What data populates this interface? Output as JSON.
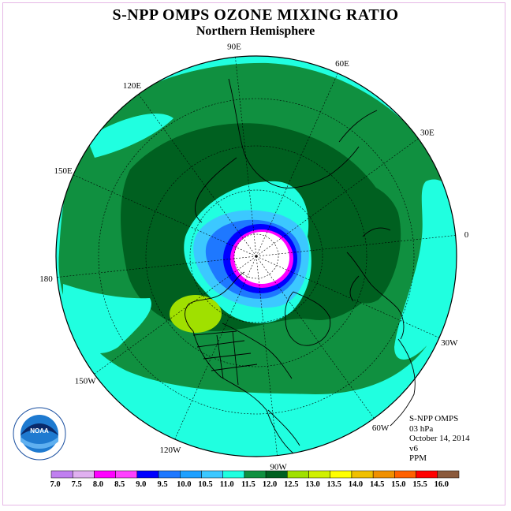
{
  "title": "S-NPP OMPS OZONE MIXING RATIO",
  "subtitle": "Northern Hemisphere",
  "longitude_labels": [
    {
      "text": "90E",
      "lon": 90
    },
    {
      "text": "60E",
      "lon": 60
    },
    {
      "text": "30E",
      "lon": 30
    },
    {
      "text": "0",
      "lon": 0
    },
    {
      "text": "30W",
      "lon": -30
    },
    {
      "text": "60W",
      "lon": -60
    },
    {
      "text": "90W",
      "lon": -90
    },
    {
      "text": "120W",
      "lon": -120
    },
    {
      "text": "150W",
      "lon": -150
    },
    {
      "text": "180",
      "lon": 180
    },
    {
      "text": "150E",
      "lon": 150
    },
    {
      "text": "120E",
      "lon": 120
    }
  ],
  "info": {
    "instrument": "S-NPP OMPS",
    "level": "03 hPa",
    "date": "October 14, 2014",
    "version": "v6",
    "units": "PPM"
  },
  "logo": {
    "text": "NOAA"
  },
  "colorbar": {
    "labels": [
      "7.0",
      "7.5",
      "8.0",
      "8.5",
      "9.0",
      "9.5",
      "10.0",
      "10.5",
      "11.0",
      "11.5",
      "12.0",
      "12.5",
      "13.0",
      "13.5",
      "14.0",
      "14.5",
      "15.0",
      "15.5",
      "16.0"
    ],
    "colors": [
      "#c080f0",
      "#e0b0f0",
      "#ff00ff",
      "#ff40ff",
      "#0000ff",
      "#1e78ff",
      "#1ea0ff",
      "#3cc8ff",
      "#20ffe0",
      "#109040",
      "#006020",
      "#a0e000",
      "#d0f000",
      "#ffff00",
      "#f0c000",
      "#f09000",
      "#ff6000",
      "#ff0000",
      "#8b5a3c"
    ]
  },
  "colors": {
    "ocean_band": "#20ffe0",
    "mid": "#109040",
    "dark": "#006020",
    "light_blue": "#3cc8ff",
    "blue": "#1e78ff",
    "deep_blue": "#0000ff",
    "magenta": "#ff00ff",
    "lime": "#a0e000",
    "grid": "#000000"
  }
}
